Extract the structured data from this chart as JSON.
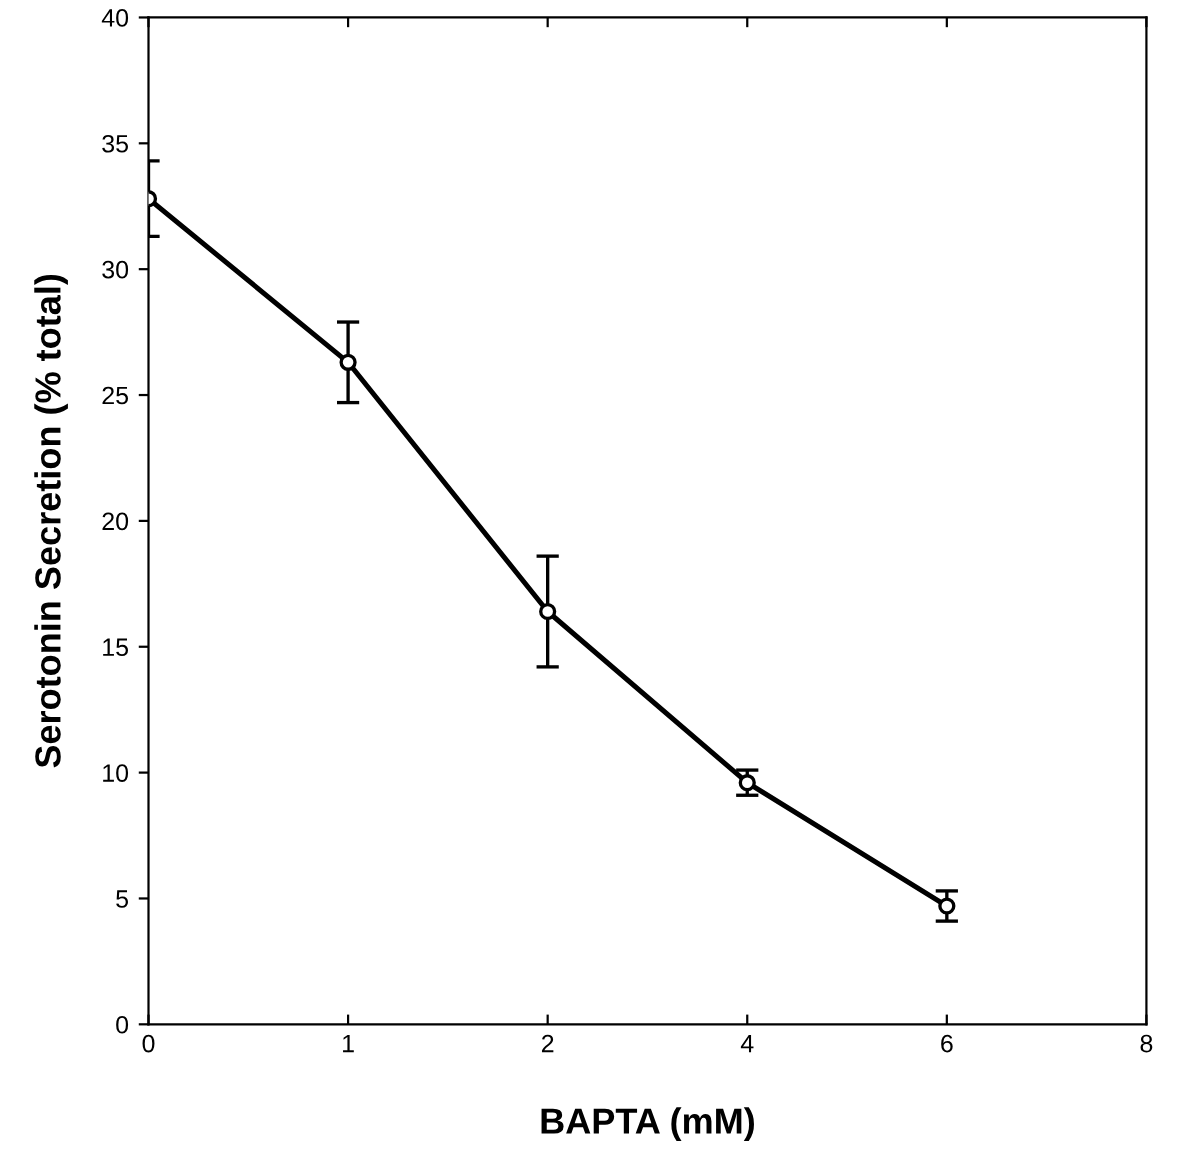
{
  "chart_data": {
    "type": "line",
    "xlabel": "BAPTA (mM)",
    "ylabel": "Serotonin Secretion (% total)",
    "categories": [
      "0",
      "1",
      "2",
      "4",
      "6",
      "8"
    ],
    "values": [
      32.8,
      26.3,
      16.4,
      9.6,
      4.7,
      null
    ],
    "errors": [
      1.5,
      1.6,
      2.2,
      0.5,
      0.6,
      null
    ],
    "color": "#000000",
    "marker": "circle",
    "line_style": "solid",
    "ylim": [
      0,
      40
    ],
    "yticks": [
      0,
      5,
      10,
      15,
      20,
      25,
      30,
      35,
      40
    ],
    "grid": false,
    "legend": false
  }
}
